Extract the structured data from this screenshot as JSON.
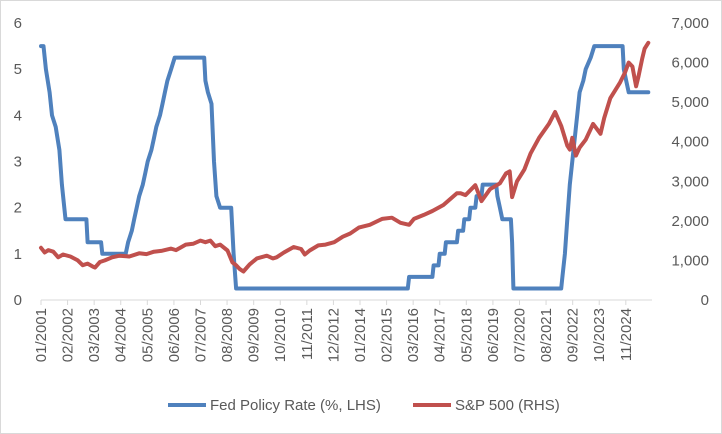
{
  "chart_data": {
    "type": "line",
    "title": "",
    "xlabel": "",
    "ylabel_left": "",
    "ylabel_right": "",
    "y_left_ticks": [
      "0",
      "1",
      "2",
      "3",
      "4",
      "5",
      "6"
    ],
    "y_left_range": [
      0,
      6
    ],
    "y_right_ticks": [
      "0",
      "1,000",
      "2,000",
      "3,000",
      "4,000",
      "5,000",
      "6,000",
      "7,000"
    ],
    "y_right_range": [
      0,
      7000
    ],
    "x_range": [
      2001.0,
      2025.9
    ],
    "x_tick_labels": [
      "01/2001",
      "02/2002",
      "03/2003",
      "04/2004",
      "05/2005",
      "06/2006",
      "07/2007",
      "08/2008",
      "09/2009",
      "10/2010",
      "11/2011",
      "12/2012",
      "01/2014",
      "02/2015",
      "03/2016",
      "04/2017",
      "05/2018",
      "06/2019",
      "07/2020",
      "08/2021",
      "09/2022",
      "10/2023",
      "11/2024"
    ],
    "x_tick_values": [
      2001.0,
      2002.083,
      2003.167,
      2004.25,
      2005.333,
      2006.417,
      2007.5,
      2008.583,
      2009.667,
      2010.75,
      2011.833,
      2012.917,
      2014.0,
      2015.083,
      2016.167,
      2017.25,
      2018.333,
      2019.417,
      2020.5,
      2021.583,
      2022.667,
      2023.75,
      2024.833
    ],
    "grid": false,
    "legend_position": "bottom",
    "series": [
      {
        "name": "Fed Policy Rate (%, LHS)",
        "axis": "left",
        "color": "#4f81bd",
        "points": [
          [
            2001.0,
            5.5
          ],
          [
            2001.1,
            5.5
          ],
          [
            2001.2,
            5.0
          ],
          [
            2001.35,
            4.5
          ],
          [
            2001.45,
            4.0
          ],
          [
            2001.6,
            3.75
          ],
          [
            2001.75,
            3.25
          ],
          [
            2001.85,
            2.5
          ],
          [
            2001.95,
            2.0
          ],
          [
            2002.0,
            1.75
          ],
          [
            2002.85,
            1.75
          ],
          [
            2002.9,
            1.25
          ],
          [
            2003.45,
            1.25
          ],
          [
            2003.5,
            1.0
          ],
          [
            2004.45,
            1.0
          ],
          [
            2004.55,
            1.25
          ],
          [
            2004.7,
            1.5
          ],
          [
            2004.8,
            1.75
          ],
          [
            2004.9,
            2.0
          ],
          [
            2005.0,
            2.25
          ],
          [
            2005.15,
            2.5
          ],
          [
            2005.25,
            2.75
          ],
          [
            2005.35,
            3.0
          ],
          [
            2005.5,
            3.25
          ],
          [
            2005.6,
            3.5
          ],
          [
            2005.7,
            3.75
          ],
          [
            2005.85,
            4.0
          ],
          [
            2005.95,
            4.25
          ],
          [
            2006.05,
            4.5
          ],
          [
            2006.15,
            4.75
          ],
          [
            2006.3,
            5.0
          ],
          [
            2006.45,
            5.25
          ],
          [
            2007.65,
            5.25
          ],
          [
            2007.7,
            4.75
          ],
          [
            2007.8,
            4.5
          ],
          [
            2007.95,
            4.25
          ],
          [
            2008.05,
            3.0
          ],
          [
            2008.15,
            2.25
          ],
          [
            2008.3,
            2.0
          ],
          [
            2008.75,
            2.0
          ],
          [
            2008.8,
            1.5
          ],
          [
            2008.85,
            1.0
          ],
          [
            2008.95,
            0.25
          ],
          [
            2015.95,
            0.25
          ],
          [
            2016.0,
            0.5
          ],
          [
            2016.95,
            0.5
          ],
          [
            2017.0,
            0.75
          ],
          [
            2017.2,
            0.75
          ],
          [
            2017.25,
            1.0
          ],
          [
            2017.45,
            1.0
          ],
          [
            2017.5,
            1.25
          ],
          [
            2017.95,
            1.25
          ],
          [
            2018.0,
            1.5
          ],
          [
            2018.2,
            1.5
          ],
          [
            2018.25,
            1.75
          ],
          [
            2018.45,
            1.75
          ],
          [
            2018.5,
            2.0
          ],
          [
            2018.7,
            2.0
          ],
          [
            2018.75,
            2.25
          ],
          [
            2018.95,
            2.25
          ],
          [
            2019.0,
            2.5
          ],
          [
            2019.55,
            2.5
          ],
          [
            2019.6,
            2.25
          ],
          [
            2019.7,
            2.0
          ],
          [
            2019.8,
            1.75
          ],
          [
            2020.15,
            1.75
          ],
          [
            2020.2,
            1.25
          ],
          [
            2020.25,
            0.25
          ],
          [
            2022.2,
            0.25
          ],
          [
            2022.25,
            0.5
          ],
          [
            2022.35,
            1.0
          ],
          [
            2022.45,
            1.75
          ],
          [
            2022.55,
            2.5
          ],
          [
            2022.7,
            3.25
          ],
          [
            2022.85,
            4.0
          ],
          [
            2022.95,
            4.5
          ],
          [
            2023.1,
            4.75
          ],
          [
            2023.2,
            5.0
          ],
          [
            2023.4,
            5.25
          ],
          [
            2023.55,
            5.5
          ],
          [
            2024.7,
            5.5
          ],
          [
            2024.75,
            5.0
          ],
          [
            2024.85,
            4.75
          ],
          [
            2024.95,
            4.5
          ],
          [
            2025.75,
            4.5
          ]
        ]
      },
      {
        "name": "S&P 500 (RHS)",
        "axis": "right",
        "color": "#c0504d",
        "points": [
          [
            2001.0,
            1320
          ],
          [
            2001.15,
            1200
          ],
          [
            2001.3,
            1260
          ],
          [
            2001.5,
            1220
          ],
          [
            2001.7,
            1080
          ],
          [
            2001.9,
            1150
          ],
          [
            2002.2,
            1100
          ],
          [
            2002.5,
            1000
          ],
          [
            2002.7,
            880
          ],
          [
            2002.9,
            920
          ],
          [
            2003.1,
            850
          ],
          [
            2003.2,
            820
          ],
          [
            2003.4,
            960
          ],
          [
            2003.6,
            1000
          ],
          [
            2003.9,
            1080
          ],
          [
            2004.2,
            1120
          ],
          [
            2004.6,
            1100
          ],
          [
            2005.0,
            1180
          ],
          [
            2005.3,
            1160
          ],
          [
            2005.6,
            1220
          ],
          [
            2005.9,
            1240
          ],
          [
            2006.3,
            1300
          ],
          [
            2006.5,
            1260
          ],
          [
            2006.9,
            1400
          ],
          [
            2007.2,
            1420
          ],
          [
            2007.5,
            1500
          ],
          [
            2007.7,
            1460
          ],
          [
            2007.9,
            1500
          ],
          [
            2008.1,
            1360
          ],
          [
            2008.3,
            1400
          ],
          [
            2008.6,
            1250
          ],
          [
            2008.8,
            950
          ],
          [
            2008.95,
            880
          ],
          [
            2009.1,
            780
          ],
          [
            2009.25,
            720
          ],
          [
            2009.5,
            900
          ],
          [
            2009.8,
            1050
          ],
          [
            2010.2,
            1120
          ],
          [
            2010.45,
            1050
          ],
          [
            2010.6,
            1080
          ],
          [
            2010.9,
            1200
          ],
          [
            2011.3,
            1340
          ],
          [
            2011.6,
            1290
          ],
          [
            2011.75,
            1150
          ],
          [
            2011.95,
            1250
          ],
          [
            2012.3,
            1380
          ],
          [
            2012.6,
            1400
          ],
          [
            2012.95,
            1460
          ],
          [
            2013.3,
            1600
          ],
          [
            2013.6,
            1680
          ],
          [
            2013.95,
            1830
          ],
          [
            2014.4,
            1900
          ],
          [
            2014.9,
            2050
          ],
          [
            2015.3,
            2080
          ],
          [
            2015.65,
            1950
          ],
          [
            2016.0,
            1900
          ],
          [
            2016.2,
            2050
          ],
          [
            2016.6,
            2150
          ],
          [
            2016.95,
            2250
          ],
          [
            2017.4,
            2400
          ],
          [
            2017.95,
            2700
          ],
          [
            2018.1,
            2700
          ],
          [
            2018.3,
            2650
          ],
          [
            2018.7,
            2900
          ],
          [
            2018.95,
            2500
          ],
          [
            2019.3,
            2800
          ],
          [
            2019.7,
            2950
          ],
          [
            2019.95,
            3200
          ],
          [
            2020.1,
            3250
          ],
          [
            2020.2,
            2600
          ],
          [
            2020.4,
            3000
          ],
          [
            2020.7,
            3300
          ],
          [
            2020.95,
            3700
          ],
          [
            2021.3,
            4100
          ],
          [
            2021.7,
            4450
          ],
          [
            2021.95,
            4750
          ],
          [
            2022.2,
            4400
          ],
          [
            2022.45,
            3900
          ],
          [
            2022.55,
            3800
          ],
          [
            2022.65,
            4100
          ],
          [
            2022.8,
            3650
          ],
          [
            2022.95,
            3850
          ],
          [
            2023.2,
            4050
          ],
          [
            2023.5,
            4450
          ],
          [
            2023.8,
            4200
          ],
          [
            2023.95,
            4600
          ],
          [
            2024.2,
            5100
          ],
          [
            2024.4,
            5300
          ],
          [
            2024.6,
            5500
          ],
          [
            2024.8,
            5750
          ],
          [
            2024.95,
            6000
          ],
          [
            2025.1,
            5900
          ],
          [
            2025.25,
            5400
          ],
          [
            2025.35,
            5650
          ],
          [
            2025.5,
            6100
          ],
          [
            2025.6,
            6350
          ],
          [
            2025.75,
            6500
          ]
        ]
      }
    ]
  }
}
